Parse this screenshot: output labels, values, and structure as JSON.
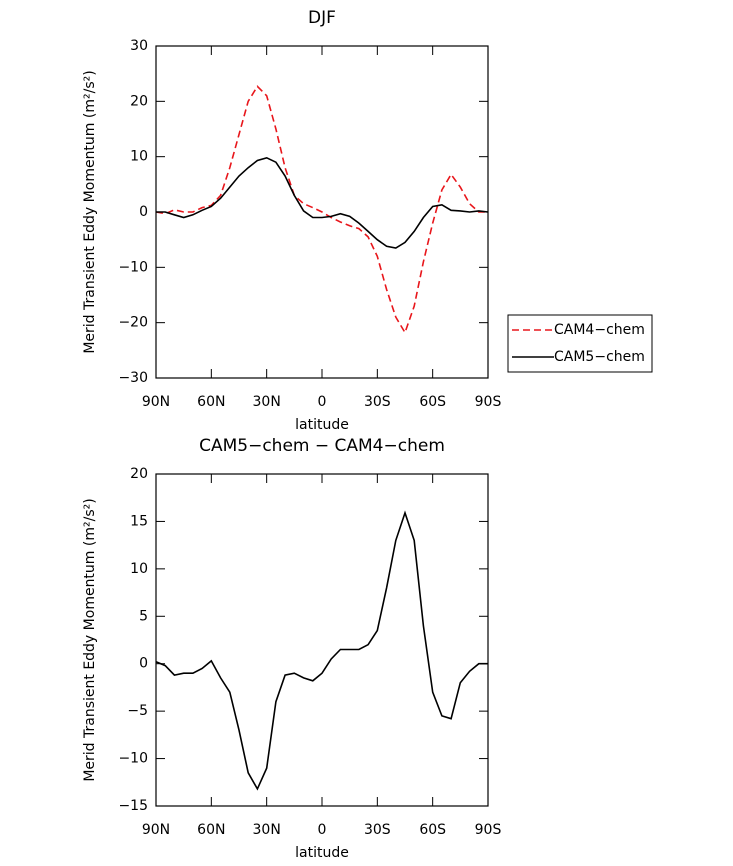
{
  "chart_data": [
    {
      "type": "line",
      "title": "DJF",
      "xlabel": "latitude",
      "ylabel": "Merid Transient Eddy Momentum (m²/s²)",
      "x": [
        90,
        85,
        80,
        75,
        70,
        65,
        60,
        55,
        50,
        45,
        40,
        35,
        30,
        25,
        20,
        15,
        10,
        5,
        0,
        -5,
        -10,
        -15,
        -20,
        -25,
        -30,
        -35,
        -40,
        -45,
        -50,
        -55,
        -60,
        -65,
        -70,
        -75,
        -80,
        -85,
        -90
      ],
      "xlim": [
        90,
        -90
      ],
      "xticks": [
        {
          "value": 90,
          "label": "90N"
        },
        {
          "value": 60,
          "label": "60N"
        },
        {
          "value": 30,
          "label": "30N"
        },
        0,
        {
          "value": -30,
          "label": "30S"
        },
        {
          "value": -60,
          "label": "60S"
        },
        {
          "value": -90,
          "label": "90S"
        }
      ],
      "ylim": [
        -30,
        30
      ],
      "yticks": [
        {
          "value": -30,
          "label": "−30"
        },
        {
          "value": -20,
          "label": "−20"
        },
        {
          "value": -10,
          "label": "−10"
        },
        0,
        10,
        20,
        30
      ],
      "legend": "right",
      "series": [
        {
          "name": "CAM4−chem",
          "color": "#e8161b",
          "dash": true,
          "values": [
            0,
            -0.3,
            0.4,
            0,
            0,
            0.8,
            1.2,
            3,
            8,
            14,
            20,
            22.7,
            21,
            15,
            8,
            3,
            1.5,
            0.8,
            0,
            -1,
            -1.8,
            -2.5,
            -3,
            -4.5,
            -8,
            -14,
            -19,
            -21.8,
            -17,
            -9,
            -2,
            4,
            6.8,
            4.5,
            1.5,
            0,
            0
          ]
        },
        {
          "name": "CAM5−chem",
          "color": "#000000",
          "dash": false,
          "values": [
            0,
            0,
            -0.5,
            -1,
            -0.5,
            0.3,
            1,
            2.5,
            4.5,
            6.5,
            8,
            9.3,
            9.8,
            9,
            6.5,
            3,
            0.2,
            -1,
            -1,
            -0.8,
            -0.3,
            -0.8,
            -2,
            -3.5,
            -5,
            -6.2,
            -6.5,
            -5.5,
            -3.5,
            -1,
            1,
            1.3,
            0.3,
            0.2,
            0,
            0.2,
            0
          ]
        }
      ]
    },
    {
      "type": "line",
      "title": "CAM5−chem − CAM4−chem",
      "xlabel": "latitude",
      "ylabel": "Merid Transient Eddy Momentum (m²/s²)",
      "x": [
        90,
        85,
        80,
        75,
        70,
        65,
        60,
        55,
        50,
        45,
        40,
        35,
        30,
        25,
        20,
        15,
        10,
        5,
        0,
        -5,
        -10,
        -15,
        -20,
        -25,
        -30,
        -35,
        -40,
        -45,
        -50,
        -55,
        -60,
        -65,
        -70,
        -75,
        -80,
        -85,
        -90
      ],
      "xlim": [
        90,
        -90
      ],
      "xticks": [
        {
          "value": 90,
          "label": "90N"
        },
        {
          "value": 60,
          "label": "60N"
        },
        {
          "value": 30,
          "label": "30N"
        },
        0,
        {
          "value": -30,
          "label": "30S"
        },
        {
          "value": -60,
          "label": "60S"
        },
        {
          "value": -90,
          "label": "90S"
        }
      ],
      "ylim": [
        -15,
        20
      ],
      "yticks": [
        {
          "value": -15,
          "label": "−15"
        },
        {
          "value": -10,
          "label": "−10"
        },
        {
          "value": -5,
          "label": "−5"
        },
        0,
        5,
        10,
        15,
        20
      ],
      "color": "#000000",
      "values": [
        0.2,
        -0.2,
        -1.2,
        -1,
        -1,
        -0.5,
        0.3,
        -1.5,
        -3,
        -7,
        -11.5,
        -13.2,
        -11,
        -4,
        -1.2,
        -1,
        -1.5,
        -1.8,
        -1,
        0.5,
        1.5,
        1.5,
        1.5,
        2,
        3.5,
        8,
        13,
        15.9,
        13,
        4,
        -3,
        -5.5,
        -5.8,
        -2,
        -0.8,
        0,
        0
      ]
    }
  ]
}
